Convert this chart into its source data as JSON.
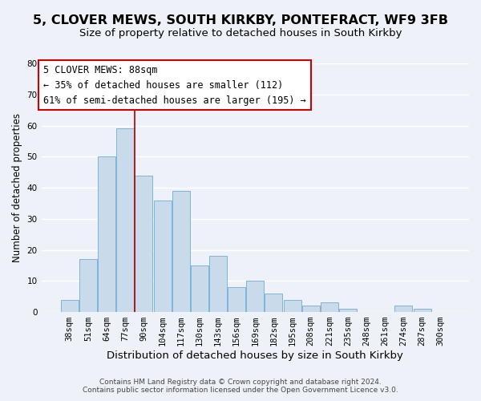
{
  "title": "5, CLOVER MEWS, SOUTH KIRKBY, PONTEFRACT, WF9 3FB",
  "subtitle": "Size of property relative to detached houses in South Kirkby",
  "xlabel": "Distribution of detached houses by size in South Kirkby",
  "ylabel": "Number of detached properties",
  "bar_labels": [
    "38sqm",
    "51sqm",
    "64sqm",
    "77sqm",
    "90sqm",
    "104sqm",
    "117sqm",
    "130sqm",
    "143sqm",
    "156sqm",
    "169sqm",
    "182sqm",
    "195sqm",
    "208sqm",
    "221sqm",
    "235sqm",
    "248sqm",
    "261sqm",
    "274sqm",
    "287sqm",
    "300sqm"
  ],
  "bar_values": [
    4,
    17,
    50,
    59,
    44,
    36,
    39,
    15,
    18,
    8,
    10,
    6,
    4,
    2,
    3,
    1,
    0,
    0,
    2,
    1,
    0
  ],
  "bar_color": "#c9daea",
  "bar_edge_color": "#7ab5d8",
  "ylim": [
    0,
    80
  ],
  "yticks": [
    0,
    10,
    20,
    30,
    40,
    50,
    60,
    70,
    80
  ],
  "vline_color": "#aa0000",
  "annotation_title": "5 CLOVER MEWS: 88sqm",
  "annotation_line1": "← 35% of detached houses are smaller (112)",
  "annotation_line2": "61% of semi-detached houses are larger (195) →",
  "annotation_box_edge_color": "#cc0000",
  "footer1": "Contains HM Land Registry data © Crown copyright and database right 2024.",
  "footer2": "Contains public sector information licensed under the Open Government Licence v3.0.",
  "background_color": "#eef2f8",
  "grid_color": "#ffffff",
  "title_fontsize": 11.5,
  "subtitle_fontsize": 9.5,
  "xlabel_fontsize": 9.5,
  "ylabel_fontsize": 8.5,
  "tick_fontsize": 7.5,
  "annotation_fontsize": 8.5,
  "footer_fontsize": 6.5,
  "vline_x_index": 3.5
}
